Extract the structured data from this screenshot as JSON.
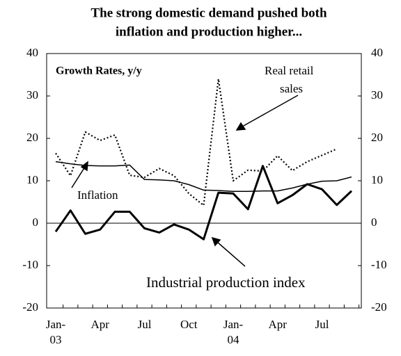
{
  "chart_data": {
    "type": "line",
    "title": [
      "The strong domestic demand pushed both",
      "inflation and production higher..."
    ],
    "annotations": [
      "Growth Rates, y/y",
      "Real retail",
      "sales",
      "Inflation",
      "Industrial production index"
    ],
    "categories": [
      "Jan-\n03",
      null,
      null,
      "Apr",
      null,
      null,
      "Jul",
      null,
      null,
      "Oct",
      null,
      null,
      "Jan-\n04",
      null,
      null,
      "Apr",
      null,
      null,
      "Jul",
      null,
      null
    ],
    "series": [
      {
        "name": "Industrial production index",
        "color": "#000000",
        "style": "thick",
        "values": [
          -2,
          3,
          -2.5,
          -1.5,
          2.7,
          2.7,
          -1.2,
          -2.2,
          -0.3,
          -1.5,
          -3.8,
          7.2,
          7,
          3.3,
          13.5,
          4.7,
          6.6,
          9.2,
          8,
          4.3,
          7.6
        ]
      },
      {
        "name": "Inflation",
        "color": "#000000",
        "style": "thin",
        "values": [
          14.5,
          14,
          13.6,
          13.5,
          13.5,
          13.7,
          10.3,
          10.2,
          10,
          9.1,
          7.8,
          7.7,
          7.5,
          7.5,
          7.6,
          7.6,
          8.3,
          9.2,
          9.9,
          10,
          10.9
        ]
      },
      {
        "name": "Real retail sales",
        "color": "#000000",
        "style": "dotted",
        "values": [
          16.5,
          11.2,
          21.5,
          19.5,
          20.8,
          11.3,
          10.8,
          12.9,
          11.2,
          7,
          4.2,
          34,
          10,
          12.5,
          12.3,
          15.9,
          12.4,
          14.5,
          16,
          17.5,
          null
        ]
      }
    ],
    "ylim": [
      -20,
      40
    ],
    "yticks": [
      -20,
      -10,
      0,
      10,
      20,
      30,
      40
    ],
    "y2lim": [
      -20,
      40
    ],
    "y2ticks": [
      -20,
      -10,
      0,
      10,
      20,
      30,
      40
    ]
  }
}
